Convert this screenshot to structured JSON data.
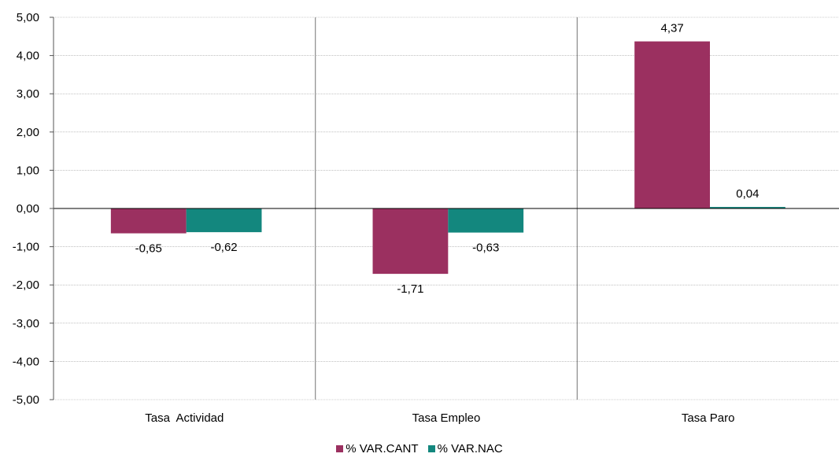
{
  "chart_data": {
    "type": "bar",
    "categories": [
      "Tasa  Actividad",
      "Tasa Empleo",
      "Tasa Paro"
    ],
    "series": [
      {
        "name": "% VAR.CANT",
        "color": "#9B3060",
        "values": [
          -0.65,
          -1.71,
          4.37
        ]
      },
      {
        "name": "% VAR.NAC",
        "color": "#13877E",
        "values": [
          -0.62,
          -0.63,
          0.04
        ]
      }
    ],
    "data_labels": [
      [
        "-0,65",
        "-1,71",
        "4,37"
      ],
      [
        "-0,62",
        "-0,63",
        "0,04"
      ]
    ],
    "ylim": [
      -5,
      5
    ],
    "yticks": [
      5,
      4,
      3,
      2,
      1,
      0,
      -1,
      -2,
      -3,
      -4,
      -5
    ],
    "ytick_labels": [
      "5,00",
      "4,00",
      "3,00",
      "2,00",
      "1,00",
      "0,00",
      "-1,00",
      "-2,00",
      "-3,00",
      "-4,00",
      "-5,00"
    ],
    "grid": true,
    "legend_position": "bottom",
    "title": "",
    "xlabel": "",
    "ylabel": ""
  }
}
